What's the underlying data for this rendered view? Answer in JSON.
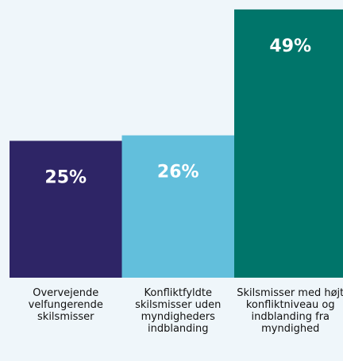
{
  "chart_data": {
    "type": "bar",
    "categories": [
      "Overvejende velfungerende skilsmisser",
      "Konfliktfyldte skilsmisser uden myndigheders indblanding",
      "Skilsmisser med højt konfliktniveau og indblanding fra myndighed"
    ],
    "values": [
      25,
      26,
      49
    ],
    "value_labels": [
      "25%",
      "26%",
      "49%"
    ],
    "colors": [
      "#2e2566",
      "#62bfdc",
      "#00756a"
    ],
    "ylim": [
      0,
      50
    ]
  }
}
